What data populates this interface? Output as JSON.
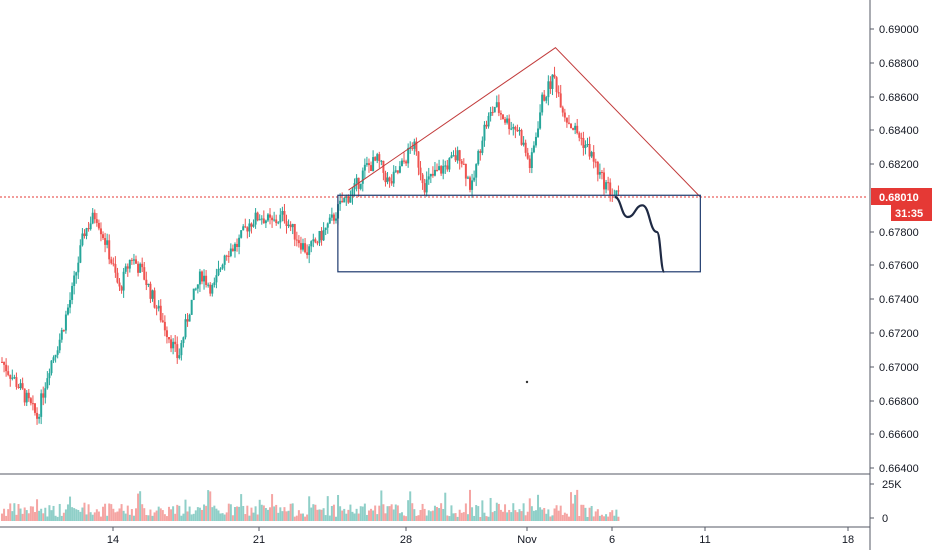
{
  "colors": {
    "bull": "#26a69a",
    "bear": "#ef5350",
    "vol_bull": "#8fcfc8",
    "vol_bear": "#f5a5a3",
    "triangle": "#c23b3b",
    "box": "#1e3a6e",
    "projection": "#1f2a44",
    "price_line": "#e53935",
    "badge": "#e53935",
    "axis_line": "#555a66"
  },
  "chart_data": {
    "type": "candlestick",
    "instrument_note": "",
    "x_tick_labels": [
      "14",
      "21",
      "28",
      "Nov",
      "6",
      "11",
      "18"
    ],
    "y_tick_labels": [
      "0.69000",
      "0.68800",
      "0.68600",
      "0.68400",
      "0.68200",
      "0.68010",
      "0.67800",
      "0.67600",
      "0.67400",
      "0.67200",
      "0.67000",
      "0.66800",
      "0.66600",
      "0.66400"
    ],
    "y_ticks": [
      0.69,
      0.688,
      0.686,
      0.684,
      0.682,
      0.678,
      0.676,
      0.674,
      0.672,
      0.67,
      0.668,
      0.666,
      0.664
    ],
    "ylim": [
      0.6641,
      0.6912
    ],
    "current_price": 0.6801,
    "current_price_label": "0.68010",
    "countdown_label": "31:35",
    "volume_axis_labels": [
      "25K",
      "0"
    ],
    "price_path": [
      [
        0,
        0.6703
      ],
      [
        3,
        0.6688
      ],
      [
        6,
        0.667
      ],
      [
        8,
        0.67
      ],
      [
        10,
        0.6718
      ],
      [
        12,
        0.6745
      ],
      [
        14,
        0.678
      ],
      [
        16,
        0.6791
      ],
      [
        18,
        0.677
      ],
      [
        20,
        0.6745
      ],
      [
        22,
        0.6765
      ],
      [
        24,
        0.6755
      ],
      [
        26,
        0.6738
      ],
      [
        28,
        0.6722
      ],
      [
        30,
        0.6705
      ],
      [
        32,
        0.6735
      ],
      [
        34,
        0.6755
      ],
      [
        36,
        0.6745
      ],
      [
        38,
        0.6768
      ],
      [
        40,
        0.6772
      ],
      [
        42,
        0.6785
      ],
      [
        44,
        0.679
      ],
      [
        46,
        0.6785
      ],
      [
        48,
        0.679
      ],
      [
        50,
        0.6778
      ],
      [
        52,
        0.6768
      ],
      [
        54,
        0.6776
      ],
      [
        56,
        0.6786
      ],
      [
        58,
        0.6798
      ],
      [
        60,
        0.6805
      ],
      [
        62,
        0.6818
      ],
      [
        64,
        0.6822
      ],
      [
        66,
        0.6808
      ],
      [
        68,
        0.6818
      ],
      [
        70,
        0.6832
      ],
      [
        72,
        0.6808
      ],
      [
        74,
        0.6815
      ],
      [
        76,
        0.682
      ],
      [
        78,
        0.6826
      ],
      [
        80,
        0.6805
      ],
      [
        82,
        0.684
      ],
      [
        84,
        0.6855
      ],
      [
        86,
        0.6845
      ],
      [
        88,
        0.684
      ],
      [
        90,
        0.6818
      ],
      [
        92,
        0.6858
      ],
      [
        94,
        0.6872
      ],
      [
        96,
        0.6848
      ],
      [
        98,
        0.6838
      ],
      [
        100,
        0.6828
      ],
      [
        102,
        0.6812
      ],
      [
        104,
        0.6803
      ],
      [
        105,
        0.6801
      ]
    ],
    "annotations": {
      "horizontal_level": 0.6801,
      "triangle": [
        [
          60,
          0.6805
        ],
        [
          94,
          0.6889
        ],
        [
          117,
          0.6801
        ]
      ],
      "box": {
        "x_from": 58,
        "x_to": 117,
        "y_from": 0.6756,
        "y_to": 0.6802
      },
      "projection": [
        [
          104,
          0.6801
        ],
        [
          106,
          0.6789
        ],
        [
          108,
          0.6796
        ],
        [
          110,
          0.678
        ],
        [
          111,
          0.6756
        ]
      ]
    }
  }
}
